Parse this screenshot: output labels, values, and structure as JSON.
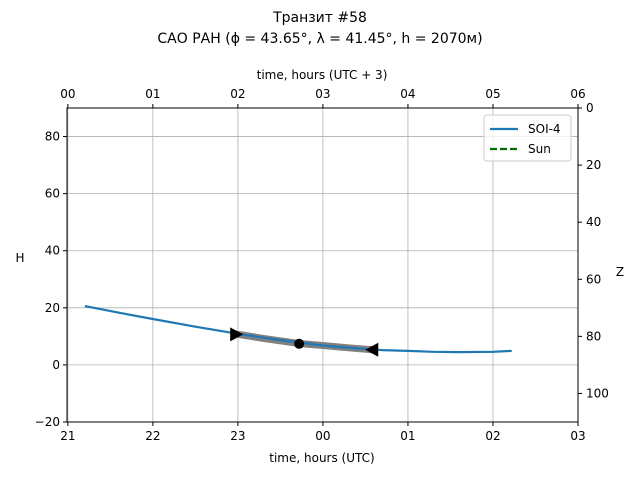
{
  "chart_data": {
    "type": "line",
    "title": "Транзит #58",
    "subtitle": "САО РАН (ϕ = 43.65°, λ = 41.45°, h = 2070м)",
    "xlabel": "time, hours (UTC)",
    "xlabel_top": "time, hours (UTC + 3)",
    "ylabel": "H",
    "ylabel_right": "Z",
    "xlim": [
      20.99,
      27.0
    ],
    "ylim": [
      -20,
      90
    ],
    "zlim": [
      0,
      110
    ],
    "x_ticks": [
      21,
      22,
      23,
      24,
      25,
      26,
      27
    ],
    "x_tick_labels": [
      "21",
      "22",
      "23",
      "00",
      "01",
      "02",
      "03"
    ],
    "top_tick_labels": [
      "00",
      "01",
      "02",
      "03",
      "04",
      "05",
      "06"
    ],
    "y_ticks": [
      -20,
      0,
      20,
      40,
      60,
      80
    ],
    "y_tick_labels": [
      "−20",
      "0",
      "20",
      "40",
      "60",
      "80"
    ],
    "z_ticks": [
      0,
      20,
      40,
      60,
      80,
      100
    ],
    "z_tick_labels": [
      "0",
      "20",
      "40",
      "60",
      "80",
      "100"
    ],
    "grid": true,
    "legend_position": "top-right",
    "series": [
      {
        "name": "SOI-4",
        "color": "#1f77b4",
        "style": "solid",
        "x": [
          21.2,
          21.6,
          22.0,
          22.5,
          23.0,
          23.5,
          24.0,
          24.4,
          24.7,
          25.0,
          25.3,
          25.6,
          26.0,
          26.22
        ],
        "y": [
          20.6,
          18.3,
          16.1,
          13.4,
          10.9,
          8.7,
          6.8,
          5.8,
          5.2,
          4.9,
          4.6,
          4.5,
          4.6,
          4.9
        ]
      },
      {
        "name": "Sun",
        "color": "#007000",
        "style": "dashed",
        "x": [],
        "y": []
      }
    ],
    "transit_segment": {
      "color": "#808080",
      "x": [
        22.98,
        23.3,
        23.72,
        24.0,
        24.3,
        24.58
      ],
      "y": [
        10.8,
        9.3,
        7.5,
        6.8,
        6.0,
        5.3
      ]
    },
    "markers": [
      {
        "type": "triangle-right",
        "x": 22.98,
        "y": 10.7
      },
      {
        "type": "circle",
        "x": 23.72,
        "y": 7.4
      },
      {
        "type": "triangle-left",
        "x": 24.58,
        "y": 5.3
      }
    ]
  }
}
